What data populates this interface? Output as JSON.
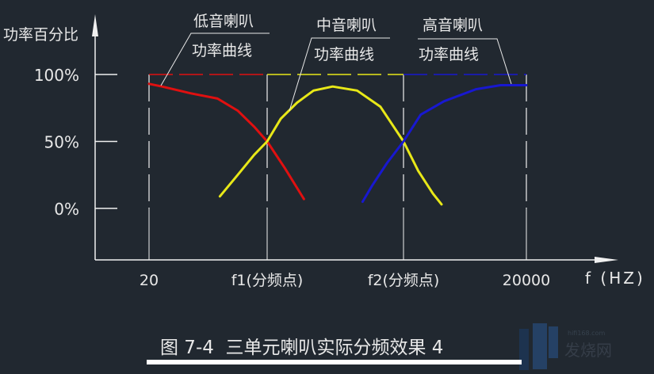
{
  "chart_data": {
    "type": "line",
    "ylabel": "功率百分比",
    "xlabel": "f (HZ)",
    "y_ticks": [
      "100%",
      "50%",
      "0%"
    ],
    "y_tick_values": [
      100,
      50,
      0
    ],
    "x_ticks": [
      "20",
      "f1(分频点)",
      "f2(分频点)",
      "20000"
    ],
    "grid": false,
    "series": [
      {
        "name": "低音喇叭功率曲线",
        "label_line1": "低音喇叭",
        "label_line2": "功率曲线",
        "color": "#e01010",
        "points": [
          [
            0,
            93
          ],
          [
            0.11,
            91
          ],
          [
            0.35,
            86
          ],
          [
            0.58,
            82
          ],
          [
            0.75,
            73
          ],
          [
            0.89,
            61
          ],
          [
            1,
            50
          ],
          [
            1.13,
            30
          ],
          [
            1.27,
            7
          ]
        ],
        "reference_range": [
          0,
          1
        ]
      },
      {
        "name": "中音喇叭功率曲线",
        "label_line1": "中音喇叭",
        "label_line2": "功率曲线",
        "color": "#e8e818",
        "points": [
          [
            0.6,
            9
          ],
          [
            0.75,
            25
          ],
          [
            0.89,
            40
          ],
          [
            1,
            50
          ],
          [
            1.1,
            67
          ],
          [
            1.22,
            79
          ],
          [
            1.34,
            88
          ],
          [
            1.48,
            91
          ],
          [
            1.66,
            88
          ],
          [
            1.83,
            76
          ],
          [
            2,
            50
          ],
          [
            2.12,
            28
          ],
          [
            2.24,
            11
          ],
          [
            2.31,
            3
          ]
        ],
        "reference_range": [
          1,
          2
        ]
      },
      {
        "name": "高音喇叭功率曲线",
        "label_line1": "高音喇叭",
        "label_line2": "功率曲线",
        "color": "#1818d0",
        "points": [
          [
            1.7,
            5
          ],
          [
            1.77,
            17
          ],
          [
            1.88,
            34
          ],
          [
            2,
            50
          ],
          [
            2.14,
            70
          ],
          [
            2.33,
            80
          ],
          [
            2.59,
            89
          ],
          [
            2.79,
            92
          ],
          [
            3,
            92
          ]
        ],
        "reference_range": [
          2,
          3
        ]
      }
    ]
  },
  "caption": "图 7-4  三单元喇叭实际分频效果 4",
  "watermark": "hifi168.com 发烧网"
}
